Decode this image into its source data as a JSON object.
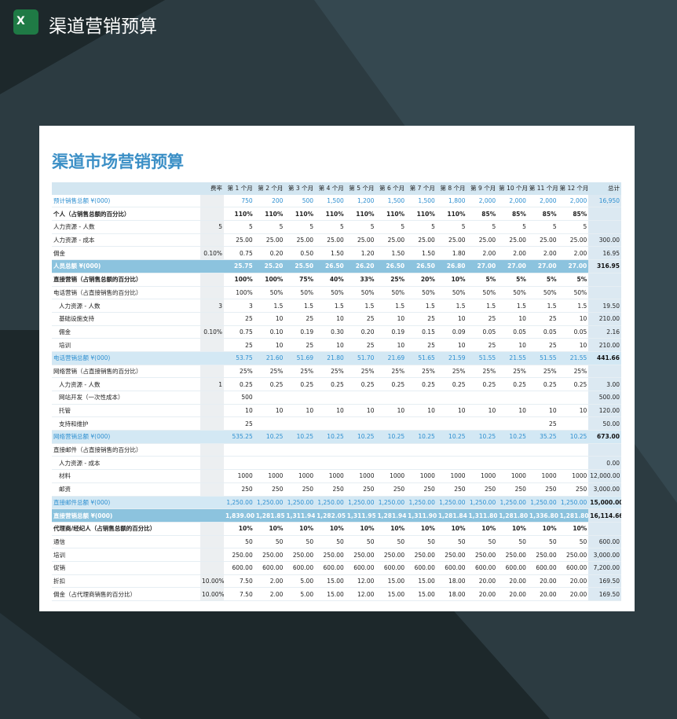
{
  "header": {
    "title": "渠道营销预算"
  },
  "sheet": {
    "title": "渠道市场营销预算",
    "table": {
      "columns": [
        null,
        "费率",
        "第 1 个月",
        "第 2 个月",
        "第 3 个月",
        "第 4 个月",
        "第 5 个月",
        "第 6 个月",
        "第 7 个月",
        "第 8 个月",
        "第 9 个月",
        "第 10 个月",
        "第 11 个月",
        "第 12 个月",
        "总计"
      ],
      "rows": [
        [
          "预计销售总额 ¥(000)",
          null,
          "750",
          "200",
          "500",
          "1,500",
          "1,200",
          "1,500",
          "1,500",
          "1,800",
          "2,000",
          "2,000",
          "2,000",
          "2,000",
          "16,950"
        ],
        [
          "个人（占销售总额的百分比）",
          null,
          "110%",
          "110%",
          "110%",
          "110%",
          "110%",
          "110%",
          "110%",
          "110%",
          "85%",
          "85%",
          "85%",
          "85%",
          null
        ],
        [
          "人力资源 - 人数",
          "5",
          "5",
          "5",
          "5",
          "5",
          "5",
          "5",
          "5",
          "5",
          "5",
          "5",
          "5",
          "5",
          null
        ],
        [
          "人力资源 - 成本",
          null,
          "25.00",
          "25.00",
          "25.00",
          "25.00",
          "25.00",
          "25.00",
          "25.00",
          "25.00",
          "25.00",
          "25.00",
          "25.00",
          "25.00",
          "300.00"
        ],
        [
          "佣金",
          "0.10%",
          "0.75",
          "0.20",
          "0.50",
          "1.50",
          "1.20",
          "1.50",
          "1.50",
          "1.80",
          "2.00",
          "2.00",
          "2.00",
          "2.00",
          "16.95"
        ],
        [
          "人员总额 ¥(000)",
          null,
          "25.75",
          "25.20",
          "25.50",
          "26.50",
          "26.20",
          "26.50",
          "26.50",
          "26.80",
          "27.00",
          "27.00",
          "27.00",
          "27.00",
          "316.95"
        ],
        [
          "直接营销（占销售总额的百分比）",
          null,
          "100%",
          "100%",
          "75%",
          "40%",
          "33%",
          "25%",
          "20%",
          "10%",
          "5%",
          "5%",
          "5%",
          "5%",
          null
        ],
        [
          "电话营销（占直接销售的百分比）",
          null,
          "100%",
          "50%",
          "50%",
          "50%",
          "50%",
          "50%",
          "50%",
          "50%",
          "50%",
          "50%",
          "50%",
          "50%",
          null
        ],
        [
          "人力资源 - 人数",
          "3",
          "3",
          "1.5",
          "1.5",
          "1.5",
          "1.5",
          "1.5",
          "1.5",
          "1.5",
          "1.5",
          "1.5",
          "1.5",
          "1.5",
          "19.50"
        ],
        [
          "基础设施支持",
          null,
          "25",
          "10",
          "25",
          "10",
          "25",
          "10",
          "25",
          "10",
          "25",
          "10",
          "25",
          "10",
          "210.00"
        ],
        [
          "佣金",
          "0.10%",
          "0.75",
          "0.10",
          "0.19",
          "0.30",
          "0.20",
          "0.19",
          "0.15",
          "0.09",
          "0.05",
          "0.05",
          "0.05",
          "0.05",
          "2.16"
        ],
        [
          "培训",
          null,
          "25",
          "10",
          "25",
          "10",
          "25",
          "10",
          "25",
          "10",
          "25",
          "10",
          "25",
          "10",
          "210.00"
        ],
        [
          "电话营销总额 ¥(000)",
          null,
          "53.75",
          "21.60",
          "51.69",
          "21.80",
          "51.70",
          "21.69",
          "51.65",
          "21.59",
          "51.55",
          "21.55",
          "51.55",
          "21.55",
          "441.66"
        ],
        [
          "网络营销（占直接销售的百分比）",
          null,
          "25%",
          "25%",
          "25%",
          "25%",
          "25%",
          "25%",
          "25%",
          "25%",
          "25%",
          "25%",
          "25%",
          "25%",
          null
        ],
        [
          "人力资源 - 人数",
          "1",
          "0.25",
          "0.25",
          "0.25",
          "0.25",
          "0.25",
          "0.25",
          "0.25",
          "0.25",
          "0.25",
          "0.25",
          "0.25",
          "0.25",
          "3.00"
        ],
        [
          "网站开发（一次性成本）",
          null,
          "500",
          null,
          null,
          null,
          null,
          null,
          null,
          null,
          null,
          null,
          null,
          null,
          "500.00"
        ],
        [
          "托管",
          null,
          "10",
          "10",
          "10",
          "10",
          "10",
          "10",
          "10",
          "10",
          "10",
          "10",
          "10",
          "10",
          "120.00"
        ],
        [
          "支持和维护",
          null,
          "25",
          null,
          null,
          null,
          null,
          null,
          null,
          null,
          null,
          null,
          "25",
          null,
          "50.00"
        ],
        [
          "网络营销总额 ¥(000)",
          null,
          "535.25",
          "10.25",
          "10.25",
          "10.25",
          "10.25",
          "10.25",
          "10.25",
          "10.25",
          "10.25",
          "10.25",
          "35.25",
          "10.25",
          "673.00"
        ],
        [
          "直接邮件（占直接销售的百分比）",
          null,
          null,
          null,
          null,
          null,
          null,
          null,
          null,
          null,
          null,
          null,
          null,
          null,
          null
        ],
        [
          "人力资源 - 成本",
          null,
          null,
          null,
          null,
          null,
          null,
          null,
          null,
          null,
          null,
          null,
          null,
          null,
          "0.00"
        ],
        [
          "材料",
          null,
          "1000",
          "1000",
          "1000",
          "1000",
          "1000",
          "1000",
          "1000",
          "1000",
          "1000",
          "1000",
          "1000",
          "1000",
          "12,000.00"
        ],
        [
          "邮资",
          null,
          "250",
          "250",
          "250",
          "250",
          "250",
          "250",
          "250",
          "250",
          "250",
          "250",
          "250",
          "250",
          "3,000.00"
        ],
        [
          "直接邮件总额 ¥(000)",
          null,
          "1,250.00",
          "1,250.00",
          "1,250.00",
          "1,250.00",
          "1,250.00",
          "1,250.00",
          "1,250.00",
          "1,250.00",
          "1,250.00",
          "1,250.00",
          "1,250.00",
          "1,250.00",
          "15,000.00"
        ],
        [
          "直接营销总额 ¥(000)",
          null,
          "1,839.00",
          "1,281.85",
          "1,311.94",
          "1,282.05",
          "1,311.95",
          "1,281.94",
          "1,311.90",
          "1,281.84",
          "1,311.80",
          "1,281.80",
          "1,336.80",
          "1,281.80",
          "16,114.66"
        ],
        [
          "代理商/经纪人（占销售总额的百分比）",
          null,
          "10%",
          "10%",
          "10%",
          "10%",
          "10%",
          "10%",
          "10%",
          "10%",
          "10%",
          "10%",
          "10%",
          "10%",
          null
        ],
        [
          "通信",
          null,
          "50",
          "50",
          "50",
          "50",
          "50",
          "50",
          "50",
          "50",
          "50",
          "50",
          "50",
          "50",
          "600.00"
        ],
        [
          "培训",
          null,
          "250.00",
          "250.00",
          "250.00",
          "250.00",
          "250.00",
          "250.00",
          "250.00",
          "250.00",
          "250.00",
          "250.00",
          "250.00",
          "250.00",
          "3,000.00"
        ],
        [
          "促销",
          null,
          "600.00",
          "600.00",
          "600.00",
          "600.00",
          "600.00",
          "600.00",
          "600.00",
          "600.00",
          "600.00",
          "600.00",
          "600.00",
          "600.00",
          "7,200.00"
        ],
        [
          "折扣",
          "10.00%",
          "7.50",
          "2.00",
          "5.00",
          "15.00",
          "12.00",
          "15.00",
          "15.00",
          "18.00",
          "20.00",
          "20.00",
          "20.00",
          "20.00",
          "169.50"
        ],
        [
          "佣金（占代理商销售的百分比）",
          "10.00%",
          "7.50",
          "2.00",
          "5.00",
          "15.00",
          "12.00",
          "15.00",
          "15.00",
          "18.00",
          "20.00",
          "20.00",
          "20.00",
          "20.00",
          "169.50"
        ]
      ]
    }
  }
}
